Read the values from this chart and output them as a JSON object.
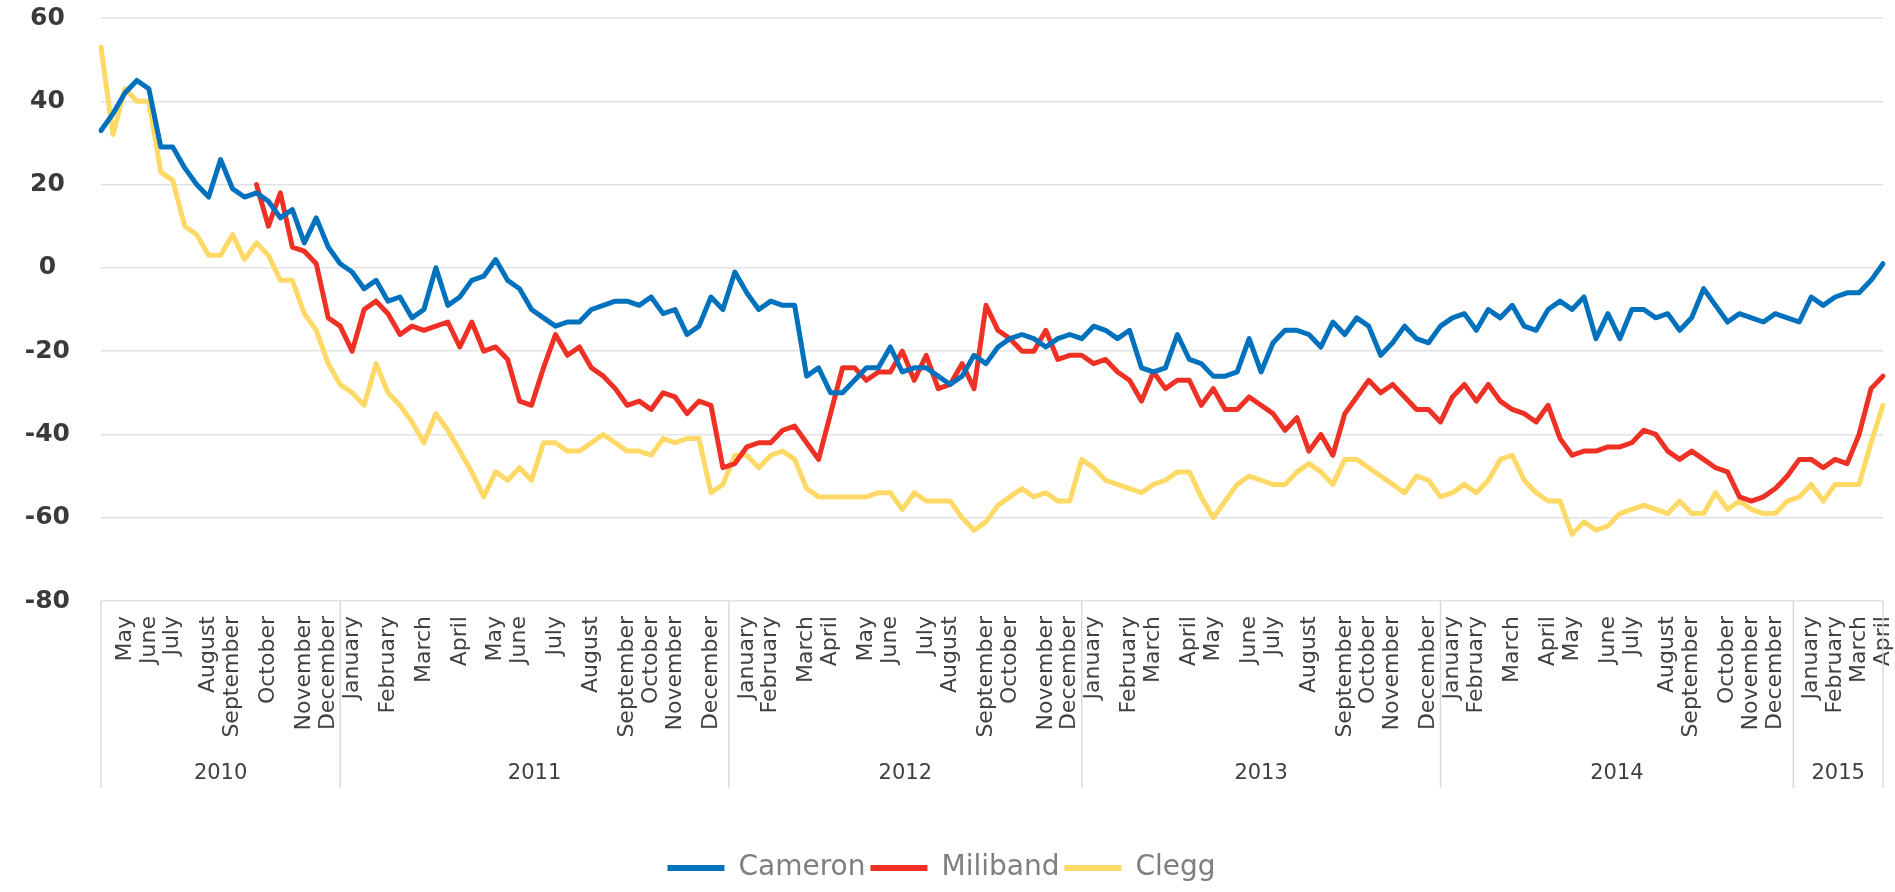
{
  "chart_data": {
    "type": "line",
    "categories": [
      null,
      null,
      "May",
      null,
      "June",
      null,
      "July",
      null,
      null,
      "August",
      null,
      "September",
      null,
      null,
      "October",
      null,
      null,
      "November",
      null,
      "December",
      null,
      "January",
      null,
      null,
      "February",
      null,
      null,
      "March",
      null,
      null,
      "April",
      null,
      null,
      "May",
      null,
      "June",
      null,
      null,
      "July",
      null,
      null,
      "August",
      null,
      null,
      "September",
      null,
      "October",
      null,
      "November",
      null,
      null,
      "December",
      null,
      null,
      "January",
      null,
      "February",
      null,
      null,
      "March",
      null,
      "April",
      null,
      null,
      "May",
      null,
      "June",
      null,
      null,
      "July",
      null,
      "August",
      null,
      null,
      "September",
      null,
      "October",
      null,
      null,
      "November",
      null,
      "December",
      null,
      "January",
      null,
      null,
      "February",
      null,
      "March",
      null,
      null,
      "April",
      null,
      "May",
      null,
      null,
      "June",
      null,
      "July",
      null,
      null,
      "August",
      null,
      null,
      "September",
      null,
      "October",
      null,
      "November",
      null,
      null,
      "December",
      null,
      "January",
      null,
      "February",
      null,
      null,
      "March",
      null,
      null,
      "April",
      null,
      "May",
      null,
      null,
      "June",
      null,
      "July",
      null,
      null,
      "August",
      null,
      "September",
      null,
      null,
      "October",
      null,
      "November",
      null,
      "December",
      null,
      null,
      "January",
      null,
      "February",
      null,
      "March",
      null,
      "April"
    ],
    "series": [
      {
        "name": "Cameron",
        "color": "#0071bc",
        "values": [
          33,
          37,
          42,
          45,
          43,
          29,
          29,
          24,
          20,
          17,
          26,
          19,
          17,
          18,
          16,
          12,
          14,
          6,
          12,
          5,
          1,
          -1,
          -5,
          -3,
          -8,
          -7,
          -12,
          -10,
          0,
          -9,
          -7,
          -3,
          -2,
          2,
          -3,
          -5,
          -10,
          -12,
          -14,
          -13,
          -13,
          -10,
          -9,
          -8,
          -8,
          -9,
          -7,
          -11,
          -10,
          -16,
          -14,
          -7,
          -10,
          -1,
          -6,
          -10,
          -8,
          -9,
          -9,
          -26,
          -24,
          -30,
          -30,
          -27,
          -24,
          -24,
          -19,
          -25,
          -24,
          -24,
          -26,
          -28,
          -26,
          -21,
          -23,
          -19,
          -17,
          -16,
          -17,
          -19,
          -17,
          -16,
          -17,
          -14,
          -15,
          -17,
          -15,
          -24,
          -25,
          -24,
          -16,
          -22,
          -23,
          -26,
          -26,
          -25,
          -17,
          -25,
          -18,
          -15,
          -15,
          -16,
          -19,
          -13,
          -16,
          -12,
          -14,
          -21,
          -18,
          -14,
          -17,
          -18,
          -14,
          -12,
          -11,
          -15,
          -10,
          -12,
          -9,
          -14,
          -15,
          -10,
          -8,
          -10,
          -7,
          -17,
          -11,
          -17,
          -10,
          -10,
          -12,
          -11,
          -15,
          -12,
          -5,
          -9,
          -13,
          -11,
          -12,
          -13,
          -11,
          -12,
          -13,
          -7,
          -9,
          -7,
          -6,
          -6,
          -3,
          1
        ]
      },
      {
        "name": "Miliband",
        "color": "#ee3124",
        "values": [
          null,
          null,
          null,
          null,
          null,
          null,
          null,
          null,
          null,
          null,
          null,
          null,
          null,
          20,
          10,
          18,
          5,
          4,
          1,
          -12,
          -14,
          -20,
          -10,
          -8,
          -11,
          -16,
          -14,
          -15,
          -14,
          -13,
          -19,
          -13,
          -20,
          -19,
          -22,
          -32,
          -33,
          -24,
          -16,
          -21,
          -19,
          -24,
          -26,
          -29,
          -33,
          -32,
          -34,
          -30,
          -31,
          -35,
          -32,
          -33,
          -48,
          -47,
          -43,
          -42,
          -42,
          -39,
          -38,
          -42,
          -46,
          -35,
          -24,
          -24,
          -27,
          -25,
          -25,
          -20,
          -27,
          -21,
          -29,
          -28,
          -23,
          -29,
          -9,
          -15,
          -17,
          -20,
          -20,
          -15,
          -22,
          -21,
          -21,
          -23,
          -22,
          -25,
          -27,
          -32,
          -25,
          -29,
          -27,
          -27,
          -33,
          -29,
          -34,
          -34,
          -31,
          -33,
          -35,
          -39,
          -36,
          -44,
          -40,
          -45,
          -35,
          -31,
          -27,
          -30,
          -28,
          -31,
          -34,
          -34,
          -37,
          -31,
          -28,
          -32,
          -28,
          -32,
          -34,
          -35,
          -37,
          -33,
          -41,
          -45,
          -44,
          -44,
          -43,
          -43,
          -42,
          -39,
          -40,
          -44,
          -46,
          -44,
          -46,
          -48,
          -49,
          -55,
          -56,
          -55,
          -53,
          -50,
          -46,
          -46,
          -48,
          -46,
          -47,
          -40,
          -29,
          -26
        ]
      },
      {
        "name": "Clegg",
        "color": "#ffd966",
        "values": [
          53,
          32,
          43,
          40,
          40,
          23,
          21,
          10,
          8,
          3,
          3,
          8,
          2,
          6,
          3,
          -3,
          -3,
          -11,
          -15,
          -23,
          -28,
          -30,
          -33,
          -23,
          -30,
          -33,
          -37,
          -42,
          -35,
          -39,
          -44,
          -49,
          -55,
          -49,
          -51,
          -48,
          -51,
          -42,
          -42,
          -44,
          -44,
          -42,
          -40,
          -42,
          -44,
          -44,
          -45,
          -41,
          -42,
          -41,
          -41,
          -54,
          -52,
          -45,
          -45,
          -48,
          -45,
          -44,
          -46,
          -53,
          -55,
          -55,
          -55,
          -55,
          -55,
          -54,
          -54,
          -58,
          -54,
          -56,
          -56,
          -56,
          -60,
          -63,
          -61,
          -57,
          -55,
          -53,
          -55,
          -54,
          -56,
          -56,
          -46,
          -48,
          -51,
          -52,
          -53,
          -54,
          -52,
          -51,
          -49,
          -49,
          -55,
          -60,
          -56,
          -52,
          -50,
          -51,
          -52,
          -52,
          -49,
          -47,
          -49,
          -52,
          -46,
          -46,
          -48,
          -50,
          -52,
          -54,
          -50,
          -51,
          -55,
          -54,
          -52,
          -54,
          -51,
          -46,
          -45,
          -51,
          -54,
          -56,
          -56,
          -64,
          -61,
          -63,
          -62,
          -59,
          -58,
          -57,
          -58,
          -59,
          -56,
          -59,
          -59,
          -54,
          -58,
          -56,
          -58,
          -59,
          -59,
          -56,
          -55,
          -52,
          -56,
          -52,
          -52,
          -52,
          -42,
          -33
        ]
      }
    ],
    "ylim": [
      -80,
      60
    ],
    "yticks": [
      -80,
      -60,
      -40,
      -20,
      0,
      20,
      40,
      60
    ],
    "grid": "y",
    "legend": "bottom",
    "annotations": [
      "2010",
      "2011",
      "2012",
      "2013",
      "2014",
      "2015"
    ]
  }
}
